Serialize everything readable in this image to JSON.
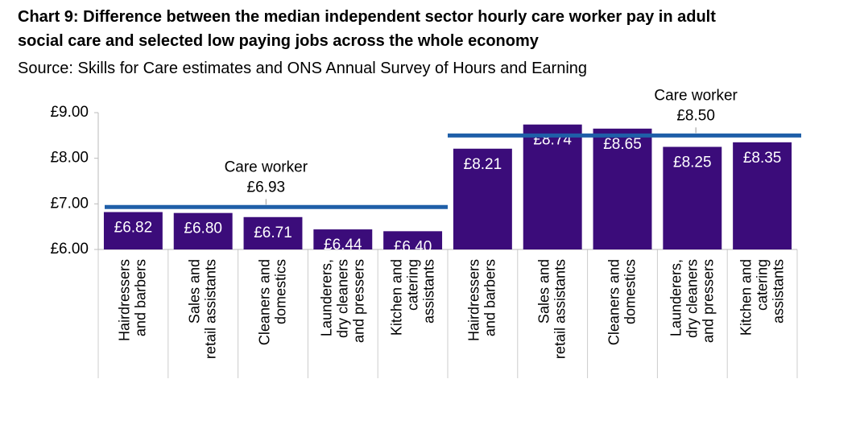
{
  "chart_data": {
    "type": "bar",
    "title": "Chart 9: Difference between the median independent sector hourly care worker pay in adult social care and selected low paying jobs across the whole economy",
    "title_lines": [
      "Chart 9: Difference between the median independent sector hourly care worker pay in adult",
      "social care and selected low paying jobs across the whole economy"
    ],
    "subtitle": "Source: Skills for Care estimates and ONS Annual Survey of Hours and Earning",
    "color": "#3b0c7a",
    "reference_color": "#1f5fa8",
    "ylim": [
      6,
      9
    ],
    "yticks": [
      {
        "value": 6,
        "label": "£6.00"
      },
      {
        "value": 7,
        "label": "£7.00"
      },
      {
        "value": 8,
        "label": "£8.00"
      },
      {
        "value": 9,
        "label": "£9.00"
      }
    ],
    "groups": [
      {
        "categories": [
          "Hairdressers\nand barbers",
          "Sales and\nretail assistants",
          "Cleaners and\ndomestics",
          "Launderers,\ndry cleaners\nand pressers",
          "Kitchen and\ncatering\nassistants"
        ],
        "values": [
          6.82,
          6.8,
          6.71,
          6.44,
          6.4
        ],
        "value_labels": [
          "£6.82",
          "£6.80",
          "£6.71",
          "£6.44",
          "£6.40"
        ],
        "reference": {
          "name": "Care worker",
          "value": 6.93,
          "value_label": "£6.93"
        }
      },
      {
        "categories": [
          "Hairdressers\nand barbers",
          "Sales and\nretail assistants",
          "Cleaners and\ndomestics",
          "Launderers,\ndry cleaners\nand pressers",
          "Kitchen and\ncatering\nassistants"
        ],
        "values": [
          8.21,
          8.74,
          8.65,
          8.25,
          8.35
        ],
        "value_labels": [
          "£8.21",
          "£8.74",
          "£8.65",
          "£8.25",
          "£8.35"
        ],
        "reference": {
          "name": "Care worker",
          "value": 8.5,
          "value_label": "£8.50"
        }
      }
    ]
  }
}
